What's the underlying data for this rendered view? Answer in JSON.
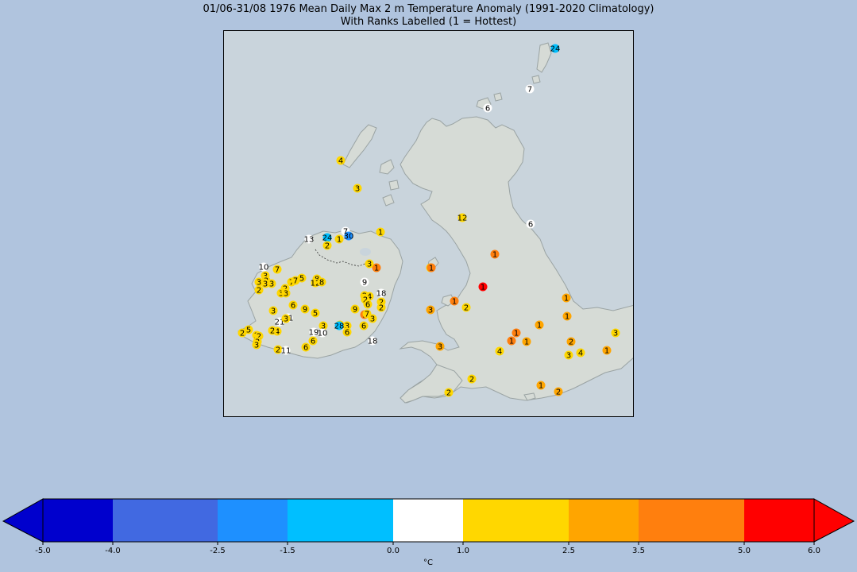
{
  "title": {
    "line1": "01/06-31/08 1976 Mean Daily Max 2 m Temperature Anomaly (1991-2020 Climatology)",
    "line2": "With Ranks Labelled (1 = Hottest)"
  },
  "colors": {
    "background": "#b0c4de",
    "sea": "#c9d4dc",
    "land": "#d6dbd6",
    "coast": "#9aa3a3"
  },
  "colorbar": {
    "unit": "°C",
    "ticks": [
      "-5.0",
      "-4.0",
      "-2.5",
      "-1.5",
      "0.0",
      "1.0",
      "2.5",
      "3.5",
      "5.0",
      "6.0"
    ],
    "bins": [
      {
        "from": -5.0,
        "to": -4.0,
        "color": "#0000cd"
      },
      {
        "from": -4.0,
        "to": -2.5,
        "color": "#4169e1"
      },
      {
        "from": -2.5,
        "to": -1.5,
        "color": "#1e90ff"
      },
      {
        "from": -1.5,
        "to": 0.0,
        "color": "#00bfff"
      },
      {
        "from": 0.0,
        "to": 1.0,
        "color": "#ffffff"
      },
      {
        "from": 1.0,
        "to": 2.5,
        "color": "#ffd700"
      },
      {
        "from": 2.5,
        "to": 3.5,
        "color": "#ffa500"
      },
      {
        "from": 3.5,
        "to": 5.0,
        "color": "#ff7f0e"
      },
      {
        "from": 5.0,
        "to": 6.0,
        "color": "#ff0000"
      }
    ],
    "extend_min_color": "#0000cd",
    "extend_max_color": "#ff0000"
  },
  "stations": [
    {
      "rank": "24",
      "color": "#00bfff"
    },
    {
      "rank": "7",
      "color": "#ffffff"
    },
    {
      "rank": "6",
      "color": "#ffffff"
    },
    {
      "rank": "4",
      "color": "#ffd700"
    },
    {
      "rank": "3",
      "color": "#ffd700"
    },
    {
      "rank": "12",
      "color": "#ffd700"
    },
    {
      "rank": "6",
      "color": "#ffffff"
    },
    {
      "rank": "13",
      "color": "#ffffff"
    },
    {
      "rank": "24",
      "color": "#00bfff"
    },
    {
      "rank": "7",
      "color": "#ffffff"
    },
    {
      "rank": "1",
      "color": "#ffd700"
    },
    {
      "rank": "2",
      "color": "#ffd700"
    },
    {
      "rank": "30",
      "color": "#1e90ff"
    },
    {
      "rank": "1",
      "color": "#ffd700"
    },
    {
      "rank": "1",
      "color": "#ff7f0e"
    },
    {
      "rank": "2",
      "color": "#ffd700"
    },
    {
      "rank": "10",
      "color": "#ffffff"
    },
    {
      "rank": "7",
      "color": "#ffd700"
    },
    {
      "rank": "3",
      "color": "#ffd700"
    },
    {
      "rank": "3",
      "color": "#ffd700"
    },
    {
      "rank": "3",
      "color": "#ffd700"
    },
    {
      "rank": "3",
      "color": "#ffd700"
    },
    {
      "rank": "3",
      "color": "#ffd700"
    },
    {
      "rank": "2",
      "color": "#ffd700"
    },
    {
      "rank": "3",
      "color": "#ffd700"
    },
    {
      "rank": "2",
      "color": "#ffd700"
    },
    {
      "rank": "3",
      "color": "#ffd700"
    },
    {
      "rank": "7",
      "color": "#ffd700"
    },
    {
      "rank": "7",
      "color": "#ffd700"
    },
    {
      "rank": "5",
      "color": "#ffd700"
    },
    {
      "rank": "8",
      "color": "#ffd700"
    },
    {
      "rank": "12",
      "color": "#ffd700"
    },
    {
      "rank": "8",
      "color": "#ffd700"
    },
    {
      "rank": "3",
      "color": "#ffd700"
    },
    {
      "rank": "1",
      "color": "#ff7f0e"
    },
    {
      "rank": "9",
      "color": "#ffffff"
    },
    {
      "rank": "18",
      "color": "#ffffff"
    },
    {
      "rank": "2",
      "color": "#ffd700"
    },
    {
      "rank": "4",
      "color": "#ffd700"
    },
    {
      "rank": "2",
      "color": "#ffd700"
    },
    {
      "rank": "2",
      "color": "#ffd700"
    },
    {
      "rank": "2",
      "color": "#ffd700"
    },
    {
      "rank": "3",
      "color": "#ffd700"
    },
    {
      "rank": "6",
      "color": "#ffd700"
    },
    {
      "rank": "9",
      "color": "#ffd700"
    },
    {
      "rank": "5",
      "color": "#ffd700"
    },
    {
      "rank": "21",
      "color": "#ffffff"
    },
    {
      "rank": "21",
      "color": "#ffffff"
    },
    {
      "rank": "3",
      "color": "#ffd700"
    },
    {
      "rank": "4",
      "color": "#ffd700"
    },
    {
      "rank": "3",
      "color": "#ffd700"
    },
    {
      "rank": "2",
      "color": "#ffd700"
    },
    {
      "rank": "5",
      "color": "#ffd700"
    },
    {
      "rank": "2",
      "color": "#ffd700"
    },
    {
      "rank": "2",
      "color": "#ffd700"
    },
    {
      "rank": "2",
      "color": "#ffd700"
    },
    {
      "rank": "3",
      "color": "#ffd700"
    },
    {
      "rank": "3",
      "color": "#ffd700"
    },
    {
      "rank": "3",
      "color": "#ffd700"
    },
    {
      "rank": "3",
      "color": "#ffd700"
    },
    {
      "rank": "3",
      "color": "#ffd700"
    },
    {
      "rank": "6",
      "color": "#ffd700"
    },
    {
      "rank": "9",
      "color": "#ffd700"
    },
    {
      "rank": "7",
      "color": "#ffd700"
    },
    {
      "rank": "6",
      "color": "#ffd700"
    },
    {
      "rank": "6",
      "color": "#ffd700"
    },
    {
      "rank": "18",
      "color": "#ffffff"
    },
    {
      "rank": "28",
      "color": "#00bfff"
    },
    {
      "rank": "19",
      "color": "#ffffff"
    },
    {
      "rank": "10",
      "color": "#ffffff"
    },
    {
      "rank": "6",
      "color": "#ffd700"
    },
    {
      "rank": "6",
      "color": "#ffd700"
    },
    {
      "rank": "2",
      "color": "#ffd700"
    },
    {
      "rank": "11",
      "color": "#ffffff"
    },
    {
      "rank": "1",
      "color": "#ff7f0e"
    },
    {
      "rank": "1",
      "color": "#ff7f0e"
    },
    {
      "rank": "1",
      "color": "#ff0000"
    },
    {
      "rank": "1",
      "color": "#ff7f0e"
    },
    {
      "rank": "2",
      "color": "#ffd700"
    },
    {
      "rank": "3",
      "color": "#ffa500"
    },
    {
      "rank": "1",
      "color": "#ffa500"
    },
    {
      "rank": "1",
      "color": "#ffa500"
    },
    {
      "rank": "1",
      "color": "#ffa500"
    },
    {
      "rank": "1",
      "color": "#ff7f0e"
    },
    {
      "rank": "1",
      "color": "#ff7f0e"
    },
    {
      "rank": "1",
      "color": "#ffa500"
    },
    {
      "rank": "4",
      "color": "#ffd700"
    },
    {
      "rank": "3",
      "color": "#ffa500"
    },
    {
      "rank": "2",
      "color": "#ffa500"
    },
    {
      "rank": "2",
      "color": "#ffa500"
    },
    {
      "rank": "3",
      "color": "#ffd700"
    },
    {
      "rank": "4",
      "color": "#ffd700"
    },
    {
      "rank": "1",
      "color": "#ffa500"
    },
    {
      "rank": "2",
      "color": "#ffd700"
    },
    {
      "rank": "1",
      "color": "#ffa500"
    },
    {
      "rank": "3",
      "color": "#ffd700"
    },
    {
      "rank": "2",
      "color": "#ffd700"
    }
  ]
}
